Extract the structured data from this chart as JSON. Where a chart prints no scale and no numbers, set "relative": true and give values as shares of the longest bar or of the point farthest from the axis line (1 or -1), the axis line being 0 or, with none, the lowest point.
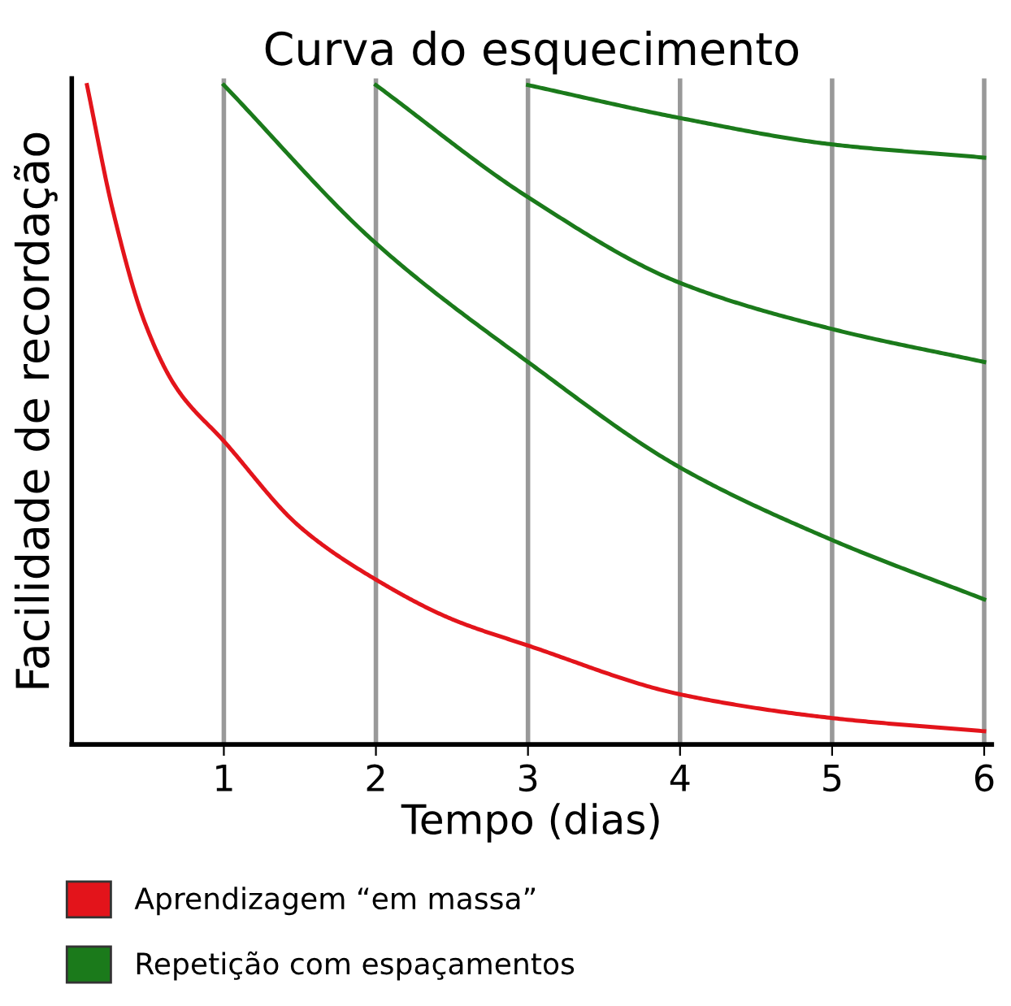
{
  "chart_data": {
    "type": "line",
    "title": "Curva do esquecimento",
    "xlabel": "Tempo (dias)",
    "ylabel": "Facilidade de recordação",
    "relative": true,
    "xlim": [
      0,
      6.05
    ],
    "xticks": [
      1,
      2,
      3,
      4,
      5,
      6
    ],
    "grid": "x",
    "legend": "bottom",
    "tick_labels": "x",
    "marker": "none",
    "line_style": "solid",
    "series": [
      {
        "name": "Aprendizagem “em massa”",
        "color": "#e3141b",
        "x": [
          0.1,
          0.27,
          0.48,
          0.69,
          1,
          1.5,
          2,
          2.5,
          3,
          4,
          5,
          6
        ],
        "values": [
          1.0,
          0.81,
          0.64,
          0.54,
          0.46,
          0.33,
          0.25,
          0.19,
          0.15,
          0.076,
          0.04,
          0.02
        ]
      },
      {
        "name": "Repetição com espaçamentos",
        "color": "#1b7a1b",
        "x": [
          1,
          2,
          3,
          4,
          5,
          6
        ],
        "values": [
          1.0,
          0.76,
          0.58,
          0.42,
          0.31,
          0.22
        ]
      },
      {
        "color": "#1b7a1b",
        "x": [
          2,
          3,
          4,
          5,
          6
        ],
        "values": [
          1.0,
          0.83,
          0.7,
          0.63,
          0.58
        ]
      },
      {
        "color": "#1b7a1b",
        "x": [
          3,
          4,
          5,
          6
        ],
        "values": [
          1.0,
          0.95,
          0.91,
          0.89
        ]
      }
    ]
  }
}
